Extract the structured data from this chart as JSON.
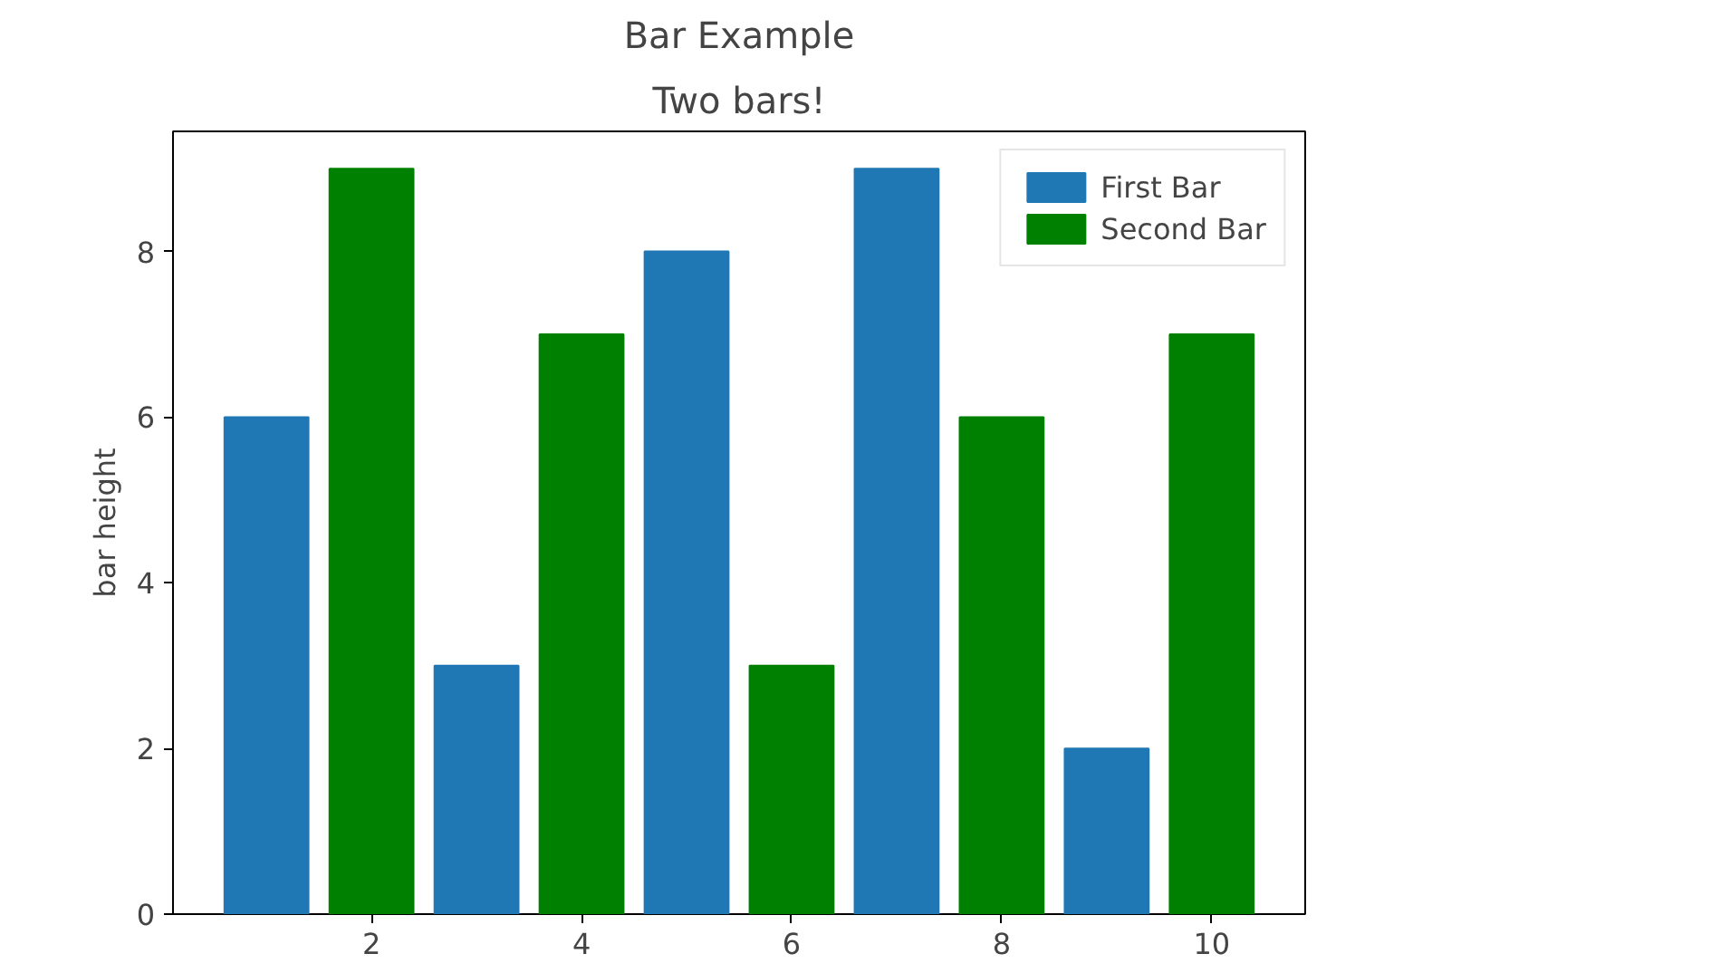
{
  "chart_data": {
    "type": "bar",
    "title": "Bar Example",
    "subtitle": "Two bars!",
    "ylabel": "bar height",
    "xlim": [
      0.11,
      10.89
    ],
    "xticks": [
      2,
      4,
      6,
      8,
      10
    ],
    "ylim": [
      0,
      9.45
    ],
    "yticks": [
      0,
      2,
      4,
      6,
      8
    ],
    "series": [
      {
        "name": "First Bar",
        "color": "#1f77b4",
        "x": [
          1,
          3,
          5,
          7,
          9
        ],
        "values": [
          6,
          3,
          8,
          9,
          2
        ]
      },
      {
        "name": "Second Bar",
        "color": "#008000",
        "x": [
          2,
          4,
          6,
          8,
          10
        ],
        "values": [
          9,
          7,
          3,
          6,
          7
        ]
      }
    ],
    "legend": "top right",
    "grid": false
  }
}
